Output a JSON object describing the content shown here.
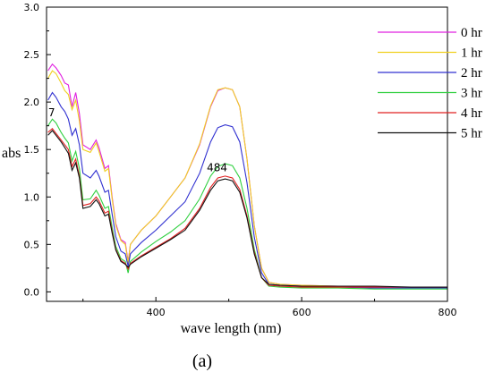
{
  "chart_data": {
    "type": "line",
    "xlabel": "wave length (nm)",
    "ylabel": "abs",
    "xlim": [
      250,
      800
    ],
    "ylim": [
      -0.1,
      3.0
    ],
    "xticks": [
      400,
      600,
      800
    ],
    "yticks": [
      0.0,
      0.5,
      1.0,
      1.5,
      2.0,
      2.5,
      3.0
    ],
    "x_tick_labels": [
      "400",
      "600",
      "800"
    ],
    "y_tick_labels": [
      "0.0",
      "0.5",
      "1.0",
      "1.5",
      "2.0",
      "2.5",
      "3.0"
    ],
    "legend_position": "top-right",
    "caption": "(a)",
    "annotations": [
      {
        "text": "7",
        "x": 257,
        "y": 1.89
      },
      {
        "text": "484",
        "x": 484,
        "y": 1.31
      }
    ],
    "series": [
      {
        "name": "0 hr",
        "color": "#e020e0",
        "points": [
          [
            252,
            2.33
          ],
          [
            258,
            2.4
          ],
          [
            263,
            2.36
          ],
          [
            270,
            2.28
          ],
          [
            275,
            2.2
          ],
          [
            280,
            2.18
          ],
          [
            285,
            1.95
          ],
          [
            290,
            2.1
          ],
          [
            295,
            1.88
          ],
          [
            300,
            1.55
          ],
          [
            310,
            1.5
          ],
          [
            318,
            1.6
          ],
          [
            322,
            1.52
          ],
          [
            330,
            1.3
          ],
          [
            335,
            1.33
          ],
          [
            340,
            1.0
          ],
          [
            345,
            0.72
          ],
          [
            352,
            0.55
          ],
          [
            358,
            0.52
          ],
          [
            362,
            0.32
          ],
          [
            365,
            0.5
          ],
          [
            380,
            0.65
          ],
          [
            400,
            0.8
          ],
          [
            420,
            1.0
          ],
          [
            440,
            1.2
          ],
          [
            460,
            1.55
          ],
          [
            475,
            1.95
          ],
          [
            485,
            2.12
          ],
          [
            495,
            2.15
          ],
          [
            505,
            2.13
          ],
          [
            515,
            1.95
          ],
          [
            525,
            1.4
          ],
          [
            535,
            0.7
          ],
          [
            545,
            0.25
          ],
          [
            555,
            0.1
          ],
          [
            570,
            0.08
          ],
          [
            600,
            0.07
          ],
          [
            650,
            0.06
          ],
          [
            700,
            0.05
          ],
          [
            750,
            0.05
          ],
          [
            800,
            0.05
          ]
        ]
      },
      {
        "name": "1 hr",
        "color": "#f0d020",
        "points": [
          [
            252,
            2.25
          ],
          [
            258,
            2.33
          ],
          [
            263,
            2.3
          ],
          [
            270,
            2.2
          ],
          [
            275,
            2.12
          ],
          [
            280,
            2.08
          ],
          [
            285,
            1.92
          ],
          [
            290,
            2.02
          ],
          [
            295,
            1.8
          ],
          [
            300,
            1.5
          ],
          [
            310,
            1.47
          ],
          [
            318,
            1.57
          ],
          [
            322,
            1.48
          ],
          [
            330,
            1.27
          ],
          [
            335,
            1.3
          ],
          [
            340,
            0.98
          ],
          [
            345,
            0.7
          ],
          [
            352,
            0.54
          ],
          [
            358,
            0.5
          ],
          [
            362,
            0.3
          ],
          [
            365,
            0.5
          ],
          [
            380,
            0.65
          ],
          [
            400,
            0.8
          ],
          [
            420,
            1.0
          ],
          [
            440,
            1.2
          ],
          [
            460,
            1.56
          ],
          [
            475,
            1.96
          ],
          [
            485,
            2.13
          ],
          [
            495,
            2.15
          ],
          [
            505,
            2.13
          ],
          [
            515,
            1.95
          ],
          [
            525,
            1.4
          ],
          [
            535,
            0.7
          ],
          [
            545,
            0.25
          ],
          [
            555,
            0.1
          ],
          [
            570,
            0.08
          ],
          [
            600,
            0.07
          ],
          [
            650,
            0.06
          ],
          [
            700,
            0.05
          ],
          [
            750,
            0.05
          ],
          [
            800,
            0.05
          ]
        ]
      },
      {
        "name": "2 hr",
        "color": "#3030d0",
        "points": [
          [
            252,
            2.02
          ],
          [
            258,
            2.1
          ],
          [
            263,
            2.05
          ],
          [
            270,
            1.95
          ],
          [
            275,
            1.9
          ],
          [
            280,
            1.82
          ],
          [
            285,
            1.65
          ],
          [
            290,
            1.72
          ],
          [
            295,
            1.55
          ],
          [
            300,
            1.25
          ],
          [
            310,
            1.2
          ],
          [
            318,
            1.28
          ],
          [
            322,
            1.22
          ],
          [
            330,
            1.05
          ],
          [
            335,
            1.07
          ],
          [
            340,
            0.82
          ],
          [
            345,
            0.58
          ],
          [
            352,
            0.43
          ],
          [
            358,
            0.4
          ],
          [
            362,
            0.27
          ],
          [
            365,
            0.4
          ],
          [
            380,
            0.52
          ],
          [
            400,
            0.65
          ],
          [
            420,
            0.8
          ],
          [
            440,
            0.95
          ],
          [
            460,
            1.25
          ],
          [
            475,
            1.58
          ],
          [
            485,
            1.73
          ],
          [
            495,
            1.76
          ],
          [
            505,
            1.74
          ],
          [
            515,
            1.58
          ],
          [
            525,
            1.15
          ],
          [
            535,
            0.58
          ],
          [
            545,
            0.2
          ],
          [
            555,
            0.08
          ],
          [
            570,
            0.07
          ],
          [
            600,
            0.06
          ],
          [
            650,
            0.05
          ],
          [
            700,
            0.04
          ],
          [
            750,
            0.04
          ],
          [
            800,
            0.04
          ]
        ]
      },
      {
        "name": "3 hr",
        "color": "#30d040",
        "points": [
          [
            252,
            1.75
          ],
          [
            258,
            1.82
          ],
          [
            263,
            1.78
          ],
          [
            270,
            1.68
          ],
          [
            275,
            1.62
          ],
          [
            280,
            1.57
          ],
          [
            285,
            1.38
          ],
          [
            290,
            1.48
          ],
          [
            295,
            1.3
          ],
          [
            300,
            0.97
          ],
          [
            310,
            0.98
          ],
          [
            318,
            1.07
          ],
          [
            322,
            1.02
          ],
          [
            330,
            0.88
          ],
          [
            335,
            0.9
          ],
          [
            340,
            0.68
          ],
          [
            345,
            0.48
          ],
          [
            352,
            0.35
          ],
          [
            358,
            0.32
          ],
          [
            362,
            0.2
          ],
          [
            365,
            0.32
          ],
          [
            380,
            0.42
          ],
          [
            400,
            0.53
          ],
          [
            420,
            0.63
          ],
          [
            440,
            0.75
          ],
          [
            460,
            0.98
          ],
          [
            475,
            1.22
          ],
          [
            485,
            1.32
          ],
          [
            495,
            1.35
          ],
          [
            505,
            1.33
          ],
          [
            515,
            1.2
          ],
          [
            525,
            0.88
          ],
          [
            535,
            0.45
          ],
          [
            545,
            0.15
          ],
          [
            555,
            0.06
          ],
          [
            570,
            0.05
          ],
          [
            600,
            0.04
          ],
          [
            650,
            0.04
          ],
          [
            700,
            0.03
          ],
          [
            750,
            0.03
          ],
          [
            800,
            0.03
          ]
        ]
      },
      {
        "name": "4 hr",
        "color": "#e02020",
        "points": [
          [
            252,
            1.68
          ],
          [
            258,
            1.72
          ],
          [
            263,
            1.67
          ],
          [
            270,
            1.6
          ],
          [
            275,
            1.55
          ],
          [
            280,
            1.5
          ],
          [
            285,
            1.32
          ],
          [
            290,
            1.4
          ],
          [
            295,
            1.22
          ],
          [
            300,
            0.91
          ],
          [
            310,
            0.93
          ],
          [
            318,
            1.0
          ],
          [
            322,
            0.96
          ],
          [
            330,
            0.83
          ],
          [
            335,
            0.85
          ],
          [
            340,
            0.64
          ],
          [
            345,
            0.45
          ],
          [
            352,
            0.33
          ],
          [
            358,
            0.3
          ],
          [
            362,
            0.24
          ],
          [
            365,
            0.3
          ],
          [
            380,
            0.38
          ],
          [
            400,
            0.47
          ],
          [
            420,
            0.56
          ],
          [
            440,
            0.67
          ],
          [
            460,
            0.88
          ],
          [
            475,
            1.1
          ],
          [
            485,
            1.2
          ],
          [
            495,
            1.22
          ],
          [
            505,
            1.2
          ],
          [
            515,
            1.08
          ],
          [
            525,
            0.8
          ],
          [
            535,
            0.42
          ],
          [
            545,
            0.15
          ],
          [
            555,
            0.07
          ],
          [
            570,
            0.06
          ],
          [
            600,
            0.05
          ],
          [
            650,
            0.05
          ],
          [
            700,
            0.05
          ],
          [
            750,
            0.05
          ],
          [
            800,
            0.05
          ]
        ]
      },
      {
        "name": "5 hr",
        "color": "#111111",
        "points": [
          [
            252,
            1.65
          ],
          [
            258,
            1.7
          ],
          [
            263,
            1.65
          ],
          [
            270,
            1.58
          ],
          [
            275,
            1.52
          ],
          [
            280,
            1.46
          ],
          [
            285,
            1.28
          ],
          [
            290,
            1.36
          ],
          [
            295,
            1.2
          ],
          [
            300,
            0.88
          ],
          [
            310,
            0.9
          ],
          [
            318,
            0.97
          ],
          [
            322,
            0.93
          ],
          [
            330,
            0.8
          ],
          [
            335,
            0.82
          ],
          [
            340,
            0.62
          ],
          [
            345,
            0.44
          ],
          [
            352,
            0.32
          ],
          [
            358,
            0.29
          ],
          [
            362,
            0.26
          ],
          [
            365,
            0.29
          ],
          [
            380,
            0.37
          ],
          [
            400,
            0.46
          ],
          [
            420,
            0.55
          ],
          [
            440,
            0.65
          ],
          [
            460,
            0.86
          ],
          [
            475,
            1.07
          ],
          [
            485,
            1.17
          ],
          [
            495,
            1.19
          ],
          [
            505,
            1.17
          ],
          [
            515,
            1.05
          ],
          [
            525,
            0.78
          ],
          [
            535,
            0.4
          ],
          [
            545,
            0.15
          ],
          [
            555,
            0.08
          ],
          [
            570,
            0.07
          ],
          [
            600,
            0.06
          ],
          [
            650,
            0.06
          ],
          [
            700,
            0.06
          ],
          [
            750,
            0.05
          ],
          [
            800,
            0.05
          ]
        ]
      }
    ]
  }
}
